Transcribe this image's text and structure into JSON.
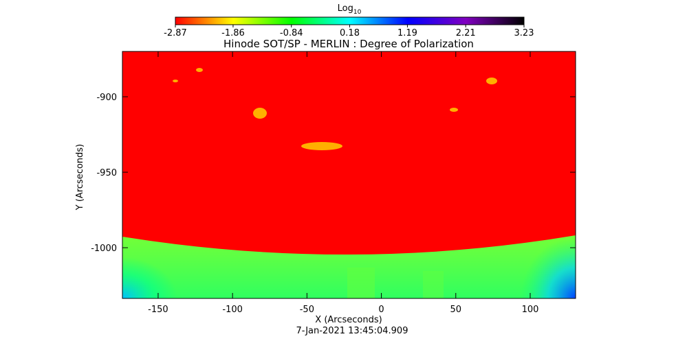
{
  "chart_data": {
    "type": "image",
    "title": "Hinode SOT/SP - MERLIN : Degree of Polarization",
    "xlabel": "X (Arcseconds)",
    "ylabel": "Y (Arcseconds)",
    "footnote": "7-Jan-2021 13:45:04.909",
    "xlim": [
      -174,
      130.5
    ],
    "xticks": [
      -150,
      -100,
      -50,
      0,
      50,
      100
    ],
    "ylim": [
      -1033.6,
      -870
    ],
    "yticks": [
      -1000,
      -950,
      -900
    ],
    "colorbar": {
      "label": "Log",
      "label_sub": "10",
      "lim": [
        -2.87,
        3.23
      ],
      "ticks": [
        -2.87,
        -1.86,
        -0.84,
        0.18,
        1.19,
        2.21,
        3.23
      ],
      "colors": [
        "#ff0000",
        "#ffff00",
        "#00ff00",
        "#00ffff",
        "#0000ff",
        "#8000c0",
        "#000000"
      ]
    }
  }
}
